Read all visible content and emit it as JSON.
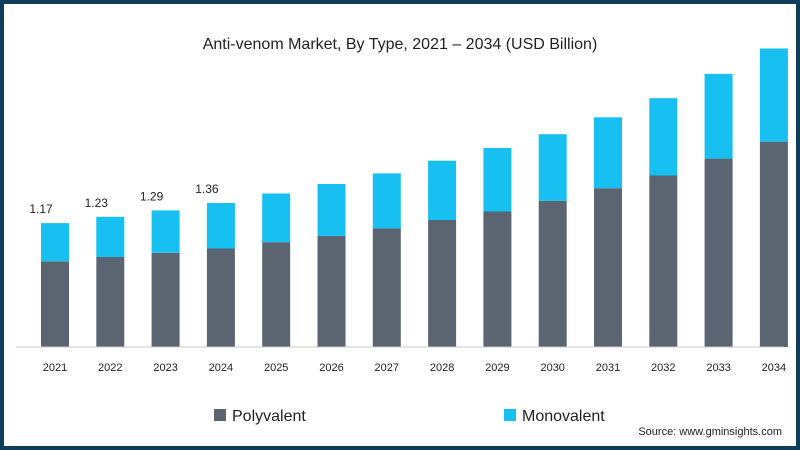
{
  "chart_data": {
    "type": "bar",
    "stacked": true,
    "title": "Anti-venom Market, By Type, 2021 – 2034 (USD Billion)",
    "xlabel": "",
    "ylabel": "",
    "categories": [
      "2021",
      "2022",
      "2023",
      "2024",
      "2025",
      "2026",
      "2027",
      "2028",
      "2029",
      "2030",
      "2031",
      "2032",
      "2033",
      "2034"
    ],
    "series": [
      {
        "name": "Polyvalent",
        "color": "#5b6572",
        "values": [
          0.81,
          0.85,
          0.89,
          0.93,
          0.99,
          1.05,
          1.12,
          1.2,
          1.28,
          1.38,
          1.5,
          1.62,
          1.78,
          1.94
        ]
      },
      {
        "name": "Monovalent",
        "color": "#17c0f0",
        "values": [
          0.36,
          0.38,
          0.4,
          0.43,
          0.46,
          0.49,
          0.52,
          0.56,
          0.6,
          0.63,
          0.67,
          0.73,
          0.8,
          0.88
        ]
      }
    ],
    "data_labels": [
      "1.17",
      "1.23",
      "1.29",
      "1.36"
    ],
    "ylim": [
      0,
      2.9
    ],
    "grid": false,
    "legend_position": "bottom"
  },
  "source": "Source: www.gminsights.com"
}
